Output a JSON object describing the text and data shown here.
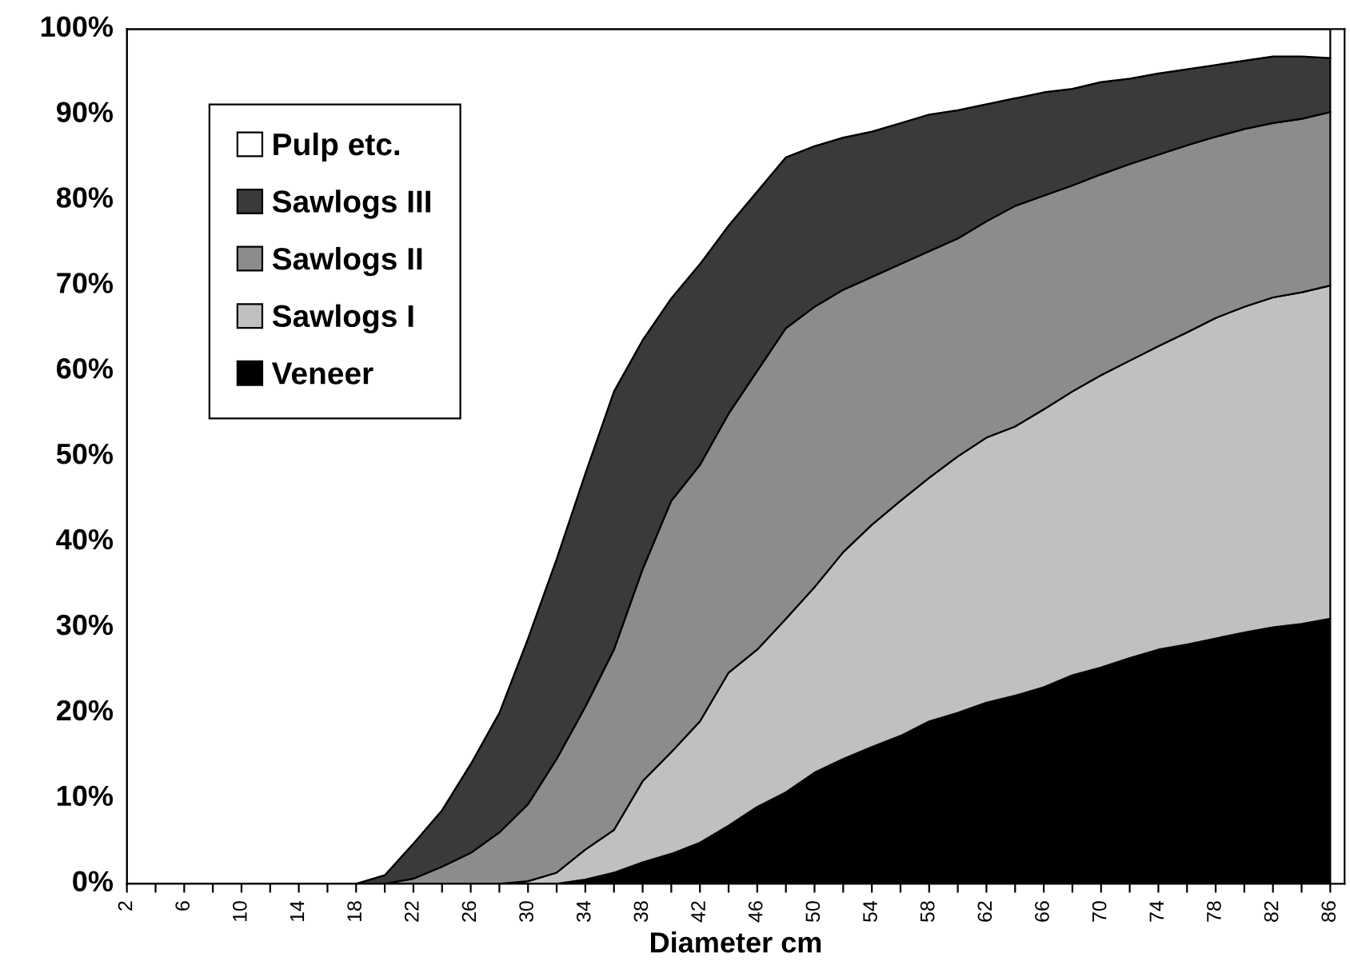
{
  "chart_data": {
    "type": "area",
    "stacked": true,
    "xlabel": "Diameter cm",
    "x": [
      2,
      4,
      6,
      8,
      10,
      12,
      14,
      16,
      18,
      20,
      22,
      24,
      26,
      28,
      30,
      32,
      34,
      36,
      38,
      40,
      42,
      44,
      46,
      48,
      50,
      52,
      54,
      56,
      58,
      60,
      62,
      64,
      66,
      68,
      70,
      72,
      74,
      76,
      78,
      80,
      82,
      84,
      86
    ],
    "series": [
      {
        "name": "Veneer",
        "color": "#000000",
        "values": [
          0,
          0,
          0,
          0,
          0,
          0,
          0,
          0,
          0,
          0,
          0,
          0,
          0,
          0,
          0,
          0,
          0.5,
          1.3,
          2.5,
          3.5,
          4.8,
          6.8,
          9,
          10.7,
          13,
          14.6,
          16,
          17.3,
          19,
          20,
          21.2,
          22,
          23,
          24.4,
          25.3,
          26.4,
          27.4,
          28,
          28.7,
          29.4,
          30,
          30.4,
          31
        ]
      },
      {
        "name": "Sawlogs I",
        "color": "#c0c0c0",
        "values": [
          0,
          0,
          0,
          0,
          0,
          0,
          0,
          0,
          0,
          0,
          0,
          0,
          0,
          0,
          0.3,
          1.3,
          3.5,
          5,
          9.5,
          11.9,
          14.2,
          17.9,
          18.4,
          20.3,
          21.7,
          24.2,
          26,
          27.5,
          28.5,
          30,
          31,
          31.5,
          32.5,
          33.2,
          34.2,
          34.8,
          35.5,
          36.5,
          37.5,
          38.1,
          38.6,
          38.8,
          39
        ]
      },
      {
        "name": "Sawlogs II",
        "color": "#8c8c8c",
        "values": [
          0,
          0,
          0,
          0,
          0,
          0,
          0,
          0,
          0,
          0,
          0.6,
          2,
          3.6,
          6,
          9,
          13.3,
          16.7,
          21.1,
          24.8,
          29.4,
          30,
          30.3,
          32.6,
          34,
          32.8,
          30.7,
          29,
          27.7,
          26.5,
          25.5,
          25.3,
          25.8,
          25,
          24.1,
          23.5,
          23,
          22.4,
          21.9,
          21.2,
          20.8,
          20.4,
          20.3,
          20.3
        ]
      },
      {
        "name": "Sawlogs III",
        "color": "#3a3a3a",
        "values": [
          0,
          0,
          0,
          0,
          0,
          0,
          0,
          0,
          0,
          1,
          4.1,
          6.6,
          10.4,
          14,
          19.4,
          23.4,
          27.3,
          30.2,
          26.8,
          23.7,
          23.5,
          22,
          21,
          20,
          18.8,
          17.8,
          17,
          16.5,
          16,
          15,
          13.7,
          12.6,
          12.1,
          11.3,
          10.8,
          10,
          9.5,
          8.9,
          8.4,
          8,
          7.8,
          7.3,
          6.3
        ]
      },
      {
        "name": "Pulp etc.",
        "color": "#ffffff",
        "values": [
          100,
          100,
          100,
          100,
          100,
          100,
          100,
          100,
          100,
          99,
          95.3,
          91.4,
          86,
          80,
          71.3,
          62,
          52,
          42.4,
          36.4,
          31.5,
          27.5,
          23,
          19,
          15,
          13.7,
          12.7,
          12,
          11,
          10,
          9.5,
          8.8,
          8.1,
          7.4,
          7,
          6.2,
          5.8,
          5.2,
          4.7,
          4.2,
          3.7,
          3.2,
          3.2,
          3.4
        ]
      }
    ],
    "xlim": [
      2,
      87
    ],
    "xticks": [
      {
        "value": 2,
        "label": "2"
      },
      {
        "value": 4,
        "label": null
      },
      {
        "value": 6,
        "label": "6"
      },
      {
        "value": 8,
        "label": null
      },
      {
        "value": 10,
        "label": "10"
      },
      {
        "value": 12,
        "label": null
      },
      {
        "value": 14,
        "label": "14"
      },
      {
        "value": 16,
        "label": null
      },
      {
        "value": 18,
        "label": "18"
      },
      {
        "value": 20,
        "label": null
      },
      {
        "value": 22,
        "label": "22"
      },
      {
        "value": 24,
        "label": null
      },
      {
        "value": 26,
        "label": "26"
      },
      {
        "value": 28,
        "label": null
      },
      {
        "value": 30,
        "label": "30"
      },
      {
        "value": 32,
        "label": null
      },
      {
        "value": 34,
        "label": "34"
      },
      {
        "value": 36,
        "label": null
      },
      {
        "value": 38,
        "label": "38"
      },
      {
        "value": 40,
        "label": null
      },
      {
        "value": 42,
        "label": "42"
      },
      {
        "value": 44,
        "label": null
      },
      {
        "value": 46,
        "label": "46"
      },
      {
        "value": 48,
        "label": null
      },
      {
        "value": 50,
        "label": "50"
      },
      {
        "value": 52,
        "label": null
      },
      {
        "value": 54,
        "label": "54"
      },
      {
        "value": 56,
        "label": null
      },
      {
        "value": 58,
        "label": "58"
      },
      {
        "value": 60,
        "label": null
      },
      {
        "value": 62,
        "label": "62"
      },
      {
        "value": 64,
        "label": null
      },
      {
        "value": 66,
        "label": "66"
      },
      {
        "value": 68,
        "label": null
      },
      {
        "value": 70,
        "label": "70"
      },
      {
        "value": 72,
        "label": null
      },
      {
        "value": 74,
        "label": "74"
      },
      {
        "value": 76,
        "label": null
      },
      {
        "value": 78,
        "label": "78"
      },
      {
        "value": 80,
        "label": null
      },
      {
        "value": 82,
        "label": "82"
      },
      {
        "value": 84,
        "label": null
      },
      {
        "value": 86,
        "label": "86"
      }
    ],
    "ylim": [
      0,
      100
    ],
    "yticks": [
      {
        "value": 0,
        "label": "0%"
      },
      {
        "value": 10,
        "label": "10%"
      },
      {
        "value": 20,
        "label": "20%"
      },
      {
        "value": 30,
        "label": "30%"
      },
      {
        "value": 40,
        "label": "40%"
      },
      {
        "value": 50,
        "label": "50%"
      },
      {
        "value": 60,
        "label": "60%"
      },
      {
        "value": 70,
        "label": "70%"
      },
      {
        "value": 80,
        "label": "80%"
      },
      {
        "value": 90,
        "label": "90%"
      },
      {
        "value": 100,
        "label": "100%"
      }
    ],
    "grid": false,
    "legend": "top left"
  }
}
